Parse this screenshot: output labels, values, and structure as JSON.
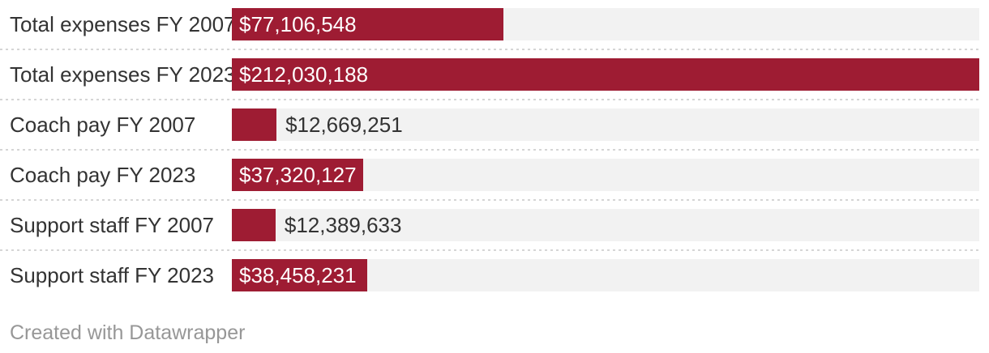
{
  "chart_data": {
    "type": "bar",
    "orientation": "horizontal",
    "categories": [
      "Total expenses FY 2007",
      "Total expenses FY 2023",
      "Coach pay FY 2007",
      "Coach pay FY 2023",
      "Support staff FY 2007",
      "Support staff FY 2023"
    ],
    "values": [
      77106548,
      212030188,
      12669251,
      37320127,
      12389633,
      38458231
    ],
    "value_labels": [
      "$77,106,548",
      "$212,030,188",
      "$12,669,251",
      "$37,320,127",
      "$12,389,633",
      "$38,458,231"
    ],
    "value_label_positions": [
      "inside",
      "inside",
      "outside",
      "inside",
      "outside",
      "inside"
    ],
    "xlim": [
      0,
      212030188
    ],
    "grid": "off",
    "legend": "none"
  },
  "colors": {
    "bar": "#9e1c33",
    "bar_track": "#f2f2f2",
    "label_text": "#333333",
    "value_inside_text": "#ffffff",
    "value_outside_text": "#333333",
    "separator": "#d5d5d5",
    "footer_text": "#979797",
    "background": "#ffffff"
  },
  "footer": {
    "credit": "Created with Datawrapper"
  }
}
